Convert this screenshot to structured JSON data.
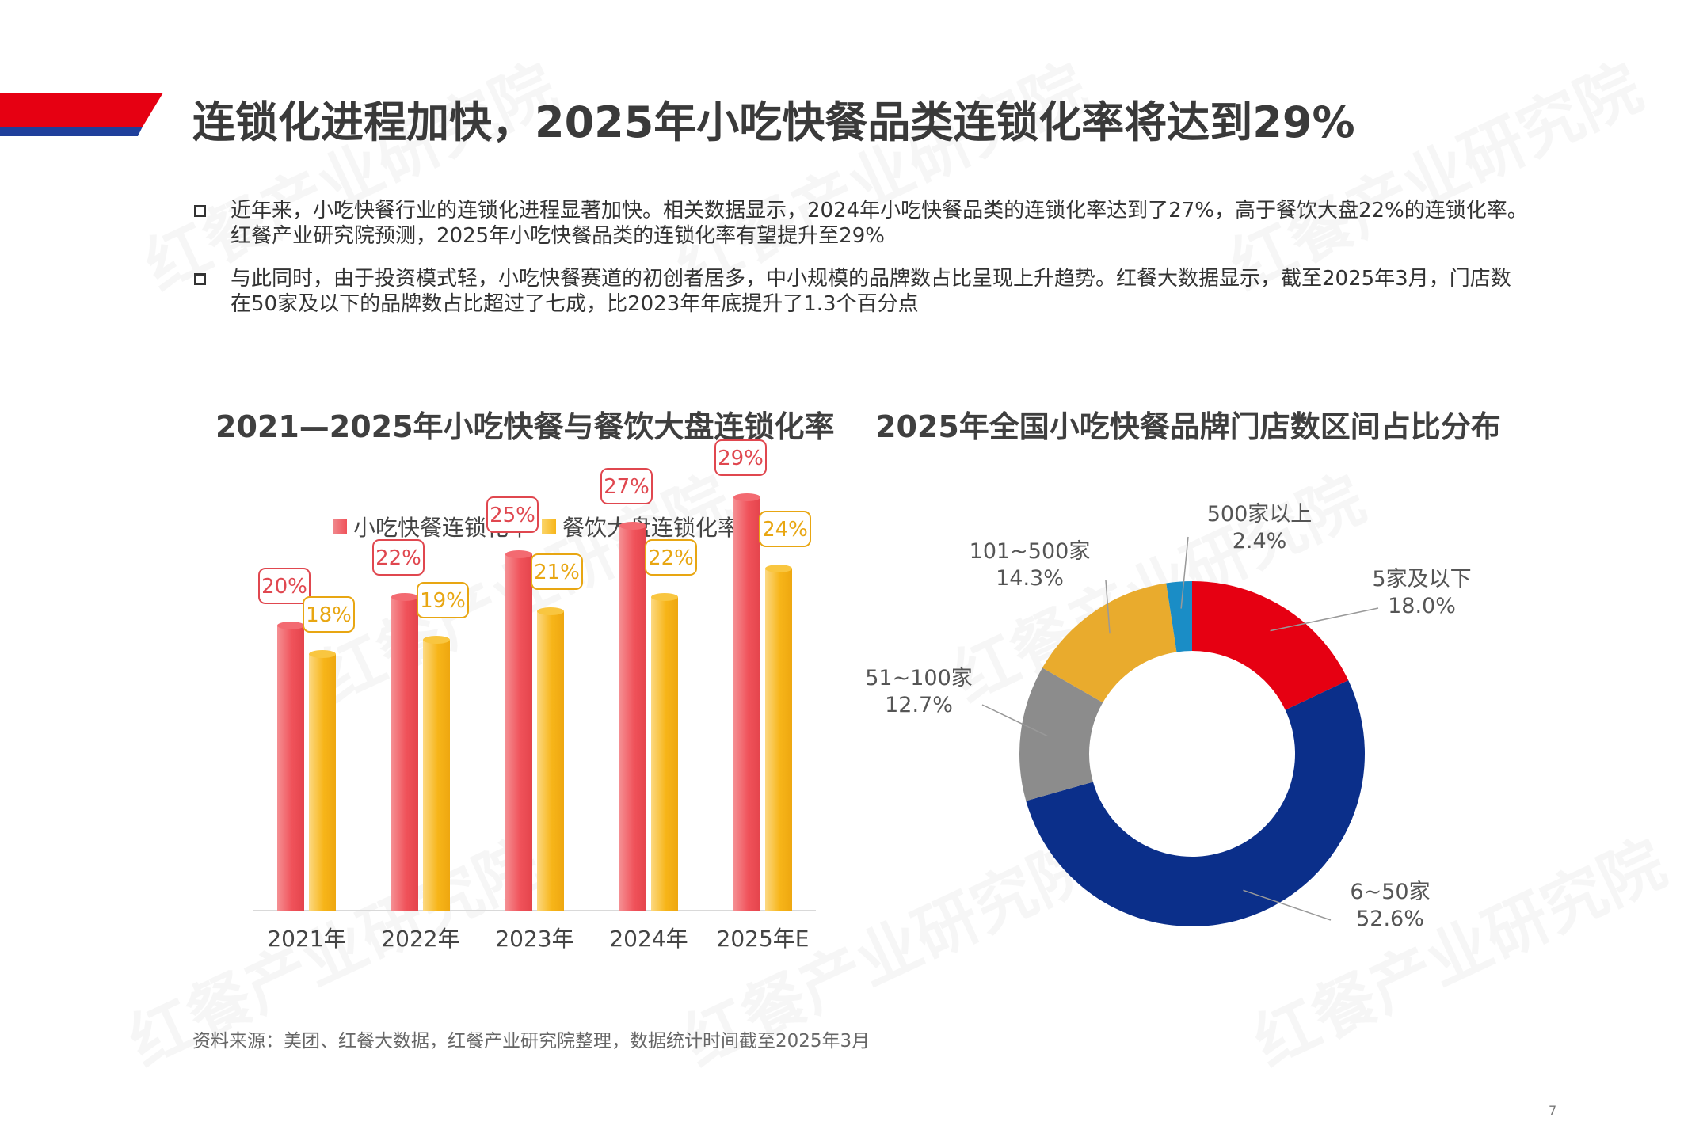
{
  "title": "连锁化进程加快，2025年小吃快餐品类连锁化率将达到29%",
  "bullets": [
    "近年来，小吃快餐行业的连锁化进程显著加快。相关数据显示，2024年小吃快餐品类的连锁化率达到了27%，高于餐饮大盘22%的连锁化率。红餐产业研究院预测，2025年小吃快餐品类的连锁化率有望提升至29%",
    "与此同时，由于投资模式轻，小吃快餐赛道的初创者居多，中小规模的品牌数占比呈现上升趋势。红餐大数据显示，截至2025年3月，门店数在50家及以下的品牌数占比超过了七成，比2023年年底提升了1.3个百分点"
  ],
  "watermark": "红餐产业研究院",
  "colors": {
    "accent_red": "#e60012",
    "accent_blue": "#1f3f9b",
    "bar_red": "#f0525a",
    "bar_yellow": "#f7b519",
    "pie": [
      "#e60012",
      "#0b2f8a",
      "#8c8c8c",
      "#e9ab2d",
      "#1a8dc6"
    ]
  },
  "chart_data": [
    {
      "type": "bar",
      "title": "2021—2025年小吃快餐与餐饮大盘连锁化率",
      "categories": [
        "2021年",
        "2022年",
        "2023年",
        "2024年",
        "2025年E"
      ],
      "series": [
        {
          "name": "小吃快餐连锁化率",
          "values": [
            20,
            22,
            25,
            27,
            29
          ],
          "labels": [
            "20%",
            "22%",
            "25%",
            "27%",
            "29%"
          ]
        },
        {
          "name": "餐饮大盘连锁化率",
          "values": [
            18,
            19,
            21,
            22,
            24
          ],
          "labels": [
            "18%",
            "19%",
            "21%",
            "22%",
            "24%"
          ]
        }
      ],
      "ylim": [
        0,
        30
      ],
      "grid": false,
      "legend": "top"
    },
    {
      "type": "pie",
      "title": "2025年全国小吃快餐品牌门店数区间占比分布",
      "donut": true,
      "slices": [
        {
          "label": "5家及以下",
          "value": 18.0,
          "text": "18.0%"
        },
        {
          "label": "6~50家",
          "value": 52.6,
          "text": "52.6%"
        },
        {
          "label": "51~100家",
          "value": 12.7,
          "text": "12.7%"
        },
        {
          "label": "101~500家",
          "value": 14.3,
          "text": "14.3%"
        },
        {
          "label": "500家以上",
          "value": 2.4,
          "text": "2.4%"
        }
      ]
    }
  ],
  "source": "资料来源：美团、红餐大数据，红餐产业研究院整理，数据统计时间截至2025年3月",
  "page_number": "7"
}
